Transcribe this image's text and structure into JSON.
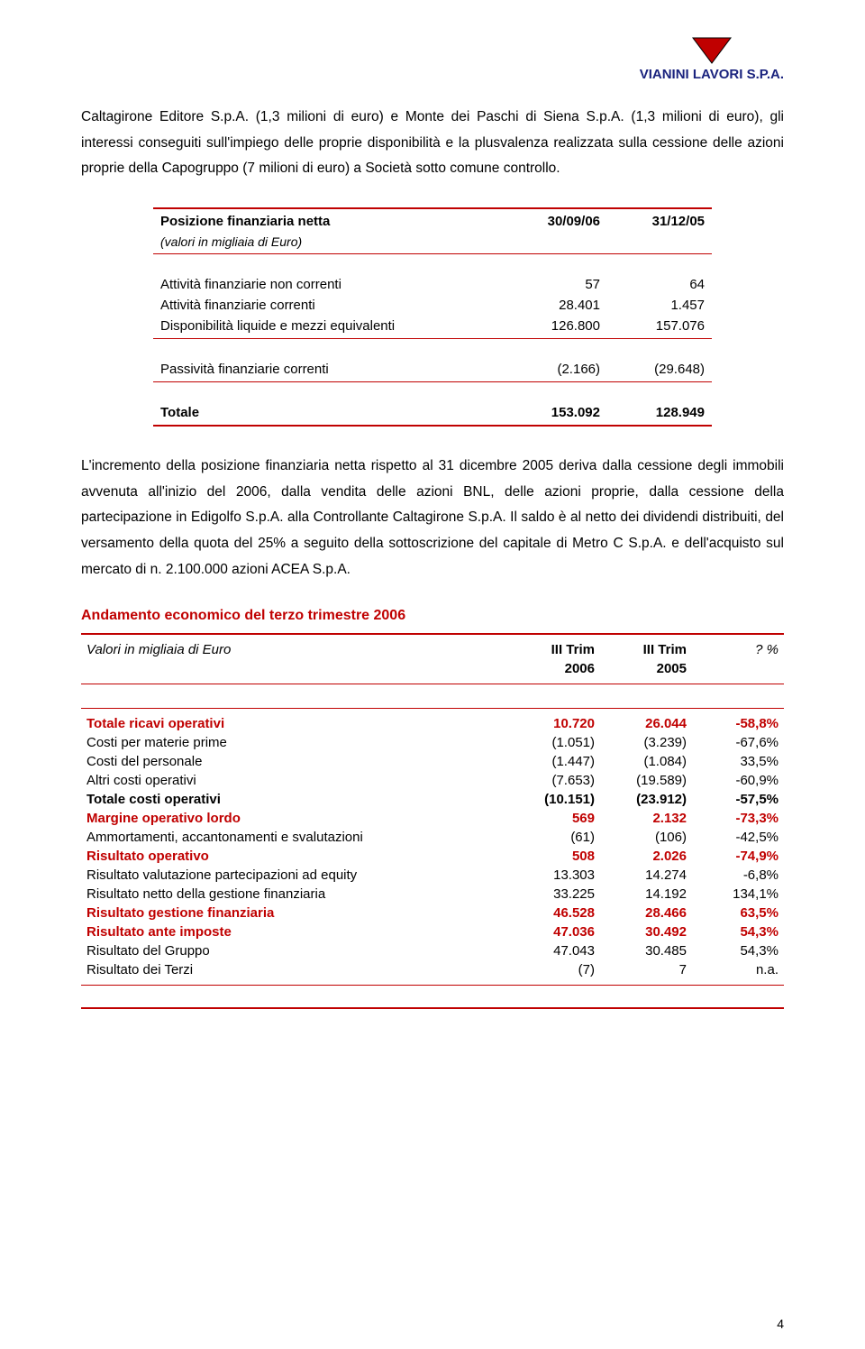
{
  "header": {
    "company": "VIANINI LAVORI S.P.A."
  },
  "para1": "Caltagirone Editore S.p.A. (1,3 milioni di euro) e Monte dei Paschi di Siena S.p.A. (1,3 milioni di euro), gli interessi conseguiti sull'impiego delle proprie disponibilità e la plusvalenza realizzata sulla cessione delle azioni proprie della Capogruppo (7 milioni di euro) a Società sotto comune controllo.",
  "table1": {
    "title": "Posizione finanziaria netta",
    "subtitle": "(valori in migliaia di Euro)",
    "col1": "30/09/06",
    "col2": "31/12/05",
    "rows": [
      {
        "label": "Attività finanziarie non correnti",
        "v1": "57",
        "v2": "64"
      },
      {
        "label": "Attività finanziarie correnti",
        "v1": "28.401",
        "v2": "1.457"
      },
      {
        "label": "Disponibilità liquide e mezzi equivalenti",
        "v1": "126.800",
        "v2": "157.076"
      }
    ],
    "passivita": {
      "label": "Passività finanziarie correnti",
      "v1": "(2.166)",
      "v2": "(29.648)"
    },
    "totale": {
      "label": "Totale",
      "v1": "153.092",
      "v2": "128.949"
    }
  },
  "para2": "L'incremento della posizione finanziaria netta rispetto al 31 dicembre 2005 deriva dalla cessione degli immobili avvenuta all'inizio del 2006, dalla vendita delle azioni BNL, delle azioni proprie, dalla cessione della partecipazione in Edigolfo S.p.A. alla Controllante Caltagirone S.p.A. Il saldo è al netto dei dividendi distribuiti, del versamento della quota del 25% a seguito della sottoscrizione del capitale di Metro C S.p.A. e dell'acquisto sul mercato di n. 2.100.000 azioni ACEA S.p.A.",
  "section_title": "Andamento economico del terzo trimestre 2006",
  "table2": {
    "header": {
      "label": "Valori in migliaia di Euro",
      "c1a": "III Trim",
      "c1b": "2006",
      "c2a": "III Trim",
      "c2b": "2005",
      "c3": "? %"
    },
    "rows": [
      {
        "label": "Totale ricavi operativi",
        "v1": "10.720",
        "v2": "26.044",
        "pct": "-58,8%",
        "red": true,
        "bold": true
      },
      {
        "label": "Costi per materie prime",
        "v1": "(1.051)",
        "v2": "(3.239)",
        "pct": "-67,6%",
        "red": false,
        "bold": false
      },
      {
        "label": "Costi del personale",
        "v1": "(1.447)",
        "v2": "(1.084)",
        "pct": "33,5%",
        "red": false,
        "bold": false
      },
      {
        "label": "Altri costi operativi",
        "v1": "(7.653)",
        "v2": "(19.589)",
        "pct": "-60,9%",
        "red": false,
        "bold": false
      },
      {
        "label": "Totale costi operativi",
        "v1": "(10.151)",
        "v2": "(23.912)",
        "pct": "-57,5%",
        "red": false,
        "bold": true
      },
      {
        "label": "Margine operativo lordo",
        "v1": "569",
        "v2": "2.132",
        "pct": "-73,3%",
        "red": true,
        "bold": true
      },
      {
        "label": "Ammortamenti, accantonamenti e svalutazioni",
        "v1": "(61)",
        "v2": "(106)",
        "pct": "-42,5%",
        "red": false,
        "bold": false
      },
      {
        "label": "Risultato operativo",
        "v1": "508",
        "v2": "2.026",
        "pct": "-74,9%",
        "red": true,
        "bold": true
      },
      {
        "label": "Risultato valutazione partecipazioni ad equity",
        "v1": "13.303",
        "v2": "14.274",
        "pct": "-6,8%",
        "red": false,
        "bold": false
      },
      {
        "label": "Risultato netto della gestione finanziaria",
        "v1": "33.225",
        "v2": "14.192",
        "pct": "134,1%",
        "red": false,
        "bold": false
      },
      {
        "label": "Risultato gestione finanziaria",
        "v1": "46.528",
        "v2": "28.466",
        "pct": "63,5%",
        "red": true,
        "bold": true
      },
      {
        "label": "Risultato ante imposte",
        "v1": "47.036",
        "v2": "30.492",
        "pct": "54,3%",
        "red": true,
        "bold": true
      },
      {
        "label": "Risultato del Gruppo",
        "v1": "47.043",
        "v2": "30.485",
        "pct": "54,3%",
        "red": false,
        "bold": false
      },
      {
        "label": "Risultato dei Terzi",
        "v1": "(7)",
        "v2": "7",
        "pct": "n.a.",
        "red": false,
        "bold": false
      }
    ]
  },
  "page_number": "4"
}
